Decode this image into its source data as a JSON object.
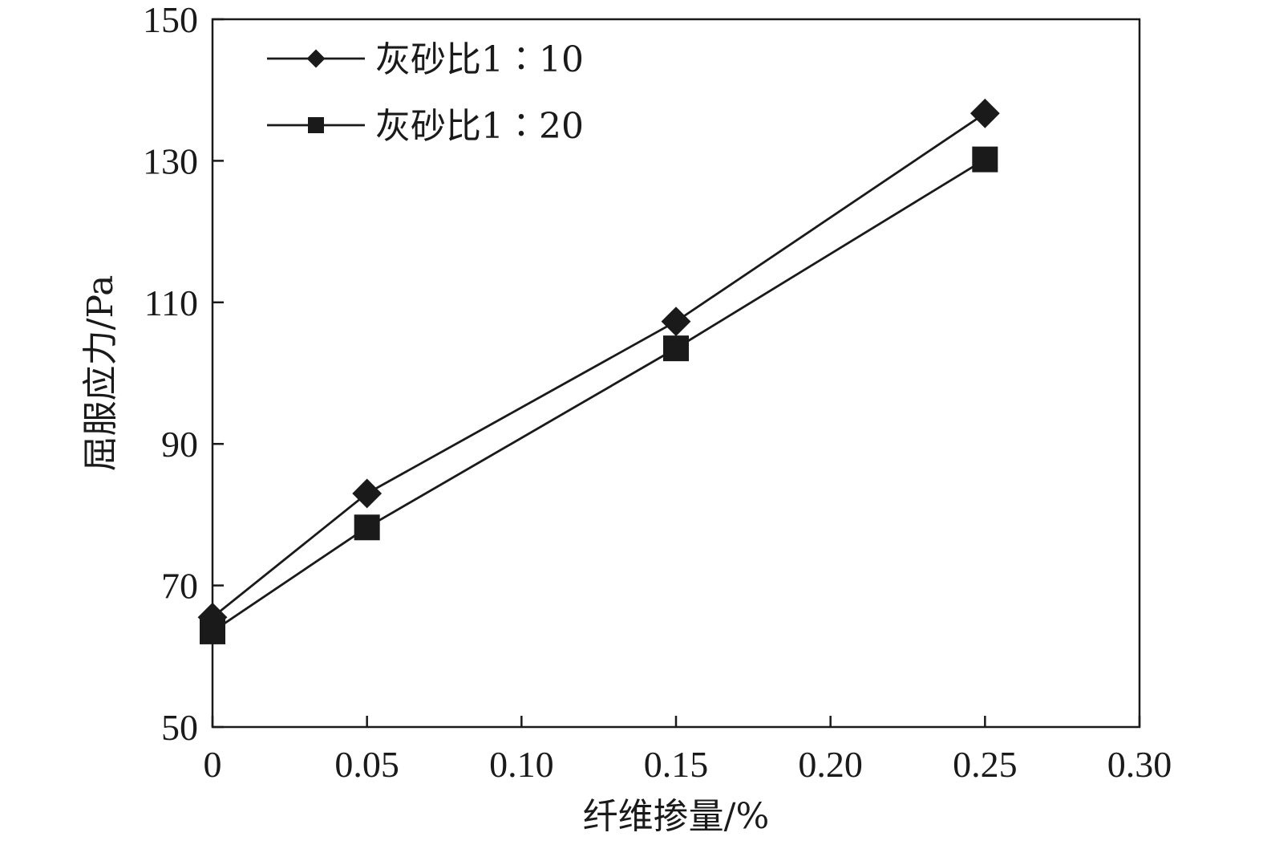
{
  "chart_data": {
    "type": "line",
    "xlabel": "纤维掺量/%",
    "ylabel": "屈服应力/Pa",
    "xlim": [
      0,
      0.3
    ],
    "ylim": [
      50,
      150
    ],
    "x_ticks": [
      "0",
      "0.05",
      "0.10",
      "0.15",
      "0.20",
      "0.25",
      "0.30"
    ],
    "x_tick_values": [
      0,
      0.05,
      0.1,
      0.15,
      0.2,
      0.25,
      0.3
    ],
    "y_ticks": [
      "50",
      "70",
      "90",
      "110",
      "130",
      "150"
    ],
    "y_tick_values": [
      50,
      70,
      90,
      110,
      130,
      150
    ],
    "legend_position": "top-left",
    "grid": false,
    "series": [
      {
        "name": "灰砂比1∶10",
        "marker": "diamond",
        "color": "#1a1a1a",
        "x": [
          0,
          0.05,
          0.15,
          0.25
        ],
        "y": [
          65.5,
          83.0,
          107.3,
          136.7
        ]
      },
      {
        "name": "灰砂比1∶20",
        "marker": "square",
        "color": "#1a1a1a",
        "x": [
          0,
          0.05,
          0.15,
          0.25
        ],
        "y": [
          63.5,
          78.2,
          103.5,
          130.2
        ]
      }
    ]
  }
}
